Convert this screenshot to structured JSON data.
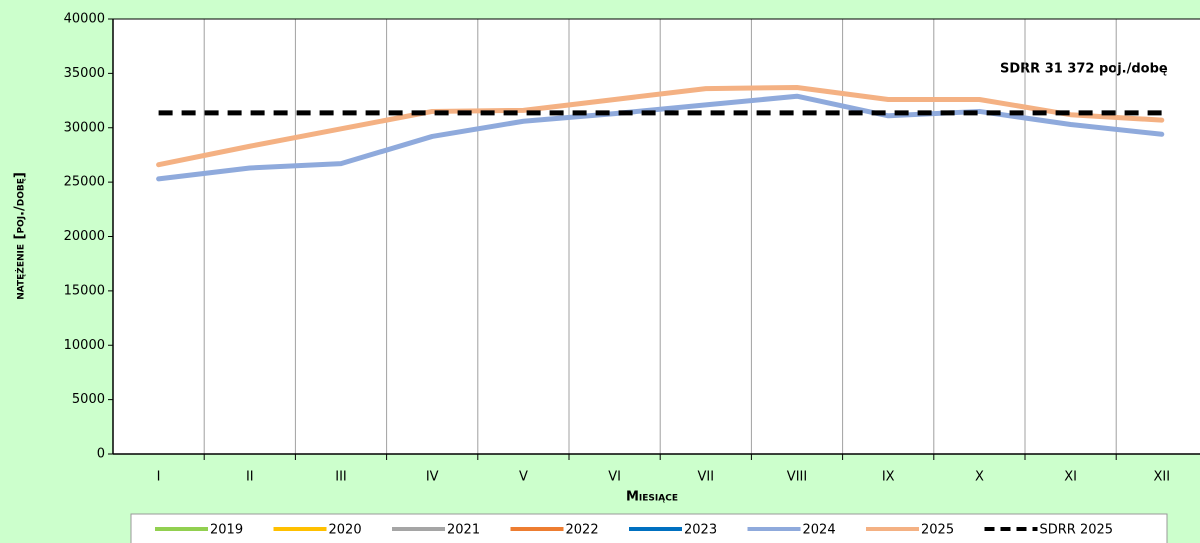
{
  "chart_data": {
    "type": "line",
    "y_label": "natężenie [poj./dobę]",
    "x_label": "Miesiące",
    "annotation": "SDRR 31 372 poj./dobę",
    "categories": [
      "I",
      "II",
      "III",
      "IV",
      "V",
      "VI",
      "VII",
      "VIII",
      "IX",
      "X",
      "XI",
      "XII"
    ],
    "series": [
      {
        "name": "2019",
        "color": "#92d050",
        "values": [
          null,
          null,
          null,
          null,
          null,
          null,
          null,
          null,
          null,
          null,
          null,
          null
        ]
      },
      {
        "name": "2020",
        "color": "#ffc000",
        "values": [
          null,
          null,
          null,
          null,
          null,
          null,
          null,
          null,
          null,
          null,
          null,
          null
        ]
      },
      {
        "name": "2021",
        "color": "#a5a5a5",
        "values": [
          null,
          null,
          null,
          null,
          null,
          null,
          null,
          null,
          null,
          null,
          null,
          null
        ]
      },
      {
        "name": "2022",
        "color": "#ed7d31",
        "values": [
          null,
          null,
          null,
          null,
          null,
          null,
          null,
          null,
          null,
          null,
          null,
          null
        ]
      },
      {
        "name": "2023",
        "color": "#0070c0",
        "values": [
          null,
          null,
          null,
          null,
          null,
          null,
          null,
          null,
          null,
          null,
          null,
          null
        ]
      },
      {
        "name": "2024",
        "color": "#8faadc",
        "values": [
          25300,
          26300,
          26700,
          29200,
          30600,
          31300,
          32100,
          32900,
          31100,
          31500,
          30300,
          29400
        ]
      },
      {
        "name": "2025",
        "color": "#f4b183",
        "values": [
          26600,
          28300,
          29900,
          31500,
          31600,
          32600,
          33600,
          33700,
          32600,
          32600,
          31200,
          30700
        ]
      },
      {
        "name": "SDRR 2025",
        "color": "#000000",
        "dashed": true,
        "values": [
          31372,
          31372,
          31372,
          31372,
          31372,
          31372,
          31372,
          31372,
          31372,
          31372,
          31372,
          31372
        ]
      }
    ],
    "ylim": [
      0,
      40000
    ],
    "yticks": [
      0,
      5000,
      10000,
      15000,
      20000,
      25000,
      30000,
      35000,
      40000
    ]
  }
}
